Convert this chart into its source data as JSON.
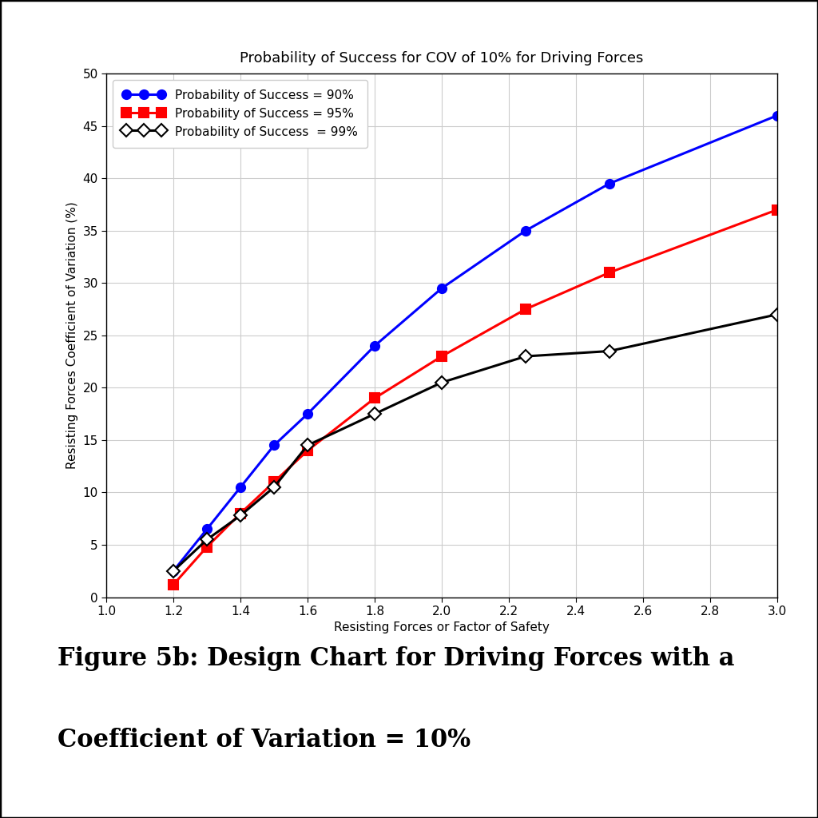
{
  "title": "Probability of Success for COV of 10% for Driving Forces",
  "xlabel": "Resisting Forces or Factor of Safety",
  "ylabel": "Resisting Forces Coefficient of Variation (%)",
  "caption_line1": "Figure 5b: Design Chart for Driving Forces with a",
  "caption_line2": "Coefficient of Variation = 10%",
  "xlim": [
    1.0,
    3.0
  ],
  "ylim": [
    0,
    50
  ],
  "xticks": [
    1.0,
    1.2,
    1.4,
    1.6,
    1.8,
    2.0,
    2.2,
    2.4,
    2.6,
    2.8,
    3.0
  ],
  "yticks": [
    0,
    5,
    10,
    15,
    20,
    25,
    30,
    35,
    40,
    45,
    50
  ],
  "series": [
    {
      "label": "Probability of Success = 90%",
      "color": "#0000FF",
      "marker": "o",
      "markerfacecolor": "#0000FF",
      "markeredgecolor": "#0000FF",
      "x": [
        1.2,
        1.3,
        1.4,
        1.5,
        1.6,
        1.8,
        2.0,
        2.25,
        2.5,
        3.0
      ],
      "y": [
        2.5,
        6.5,
        10.5,
        14.5,
        17.5,
        24.0,
        29.5,
        35.0,
        39.5,
        46.0
      ]
    },
    {
      "label": "Probability of Success = 95%",
      "color": "#FF0000",
      "marker": "s",
      "markerfacecolor": "#FF0000",
      "markeredgecolor": "#FF0000",
      "x": [
        1.2,
        1.3,
        1.4,
        1.5,
        1.6,
        1.8,
        2.0,
        2.25,
        2.5,
        3.0
      ],
      "y": [
        1.2,
        4.8,
        8.0,
        11.0,
        14.0,
        19.0,
        23.0,
        27.5,
        31.0,
        37.0
      ]
    },
    {
      "label": "Probability of Success  = 99%",
      "color": "#000000",
      "marker": "D",
      "markerfacecolor": "#ffffff",
      "markeredgecolor": "#000000",
      "x": [
        1.2,
        1.3,
        1.4,
        1.5,
        1.6,
        1.8,
        2.0,
        2.25,
        2.5,
        3.0
      ],
      "y": [
        2.5,
        5.5,
        7.8,
        10.5,
        14.5,
        17.5,
        20.5,
        23.0,
        23.5,
        27.0
      ]
    }
  ],
  "background_color": "#ffffff",
  "grid_color": "#cccccc",
  "border_color": "#000000",
  "title_fontsize": 13,
  "label_fontsize": 11,
  "tick_fontsize": 11,
  "legend_fontsize": 11,
  "caption_fontsize": 22
}
